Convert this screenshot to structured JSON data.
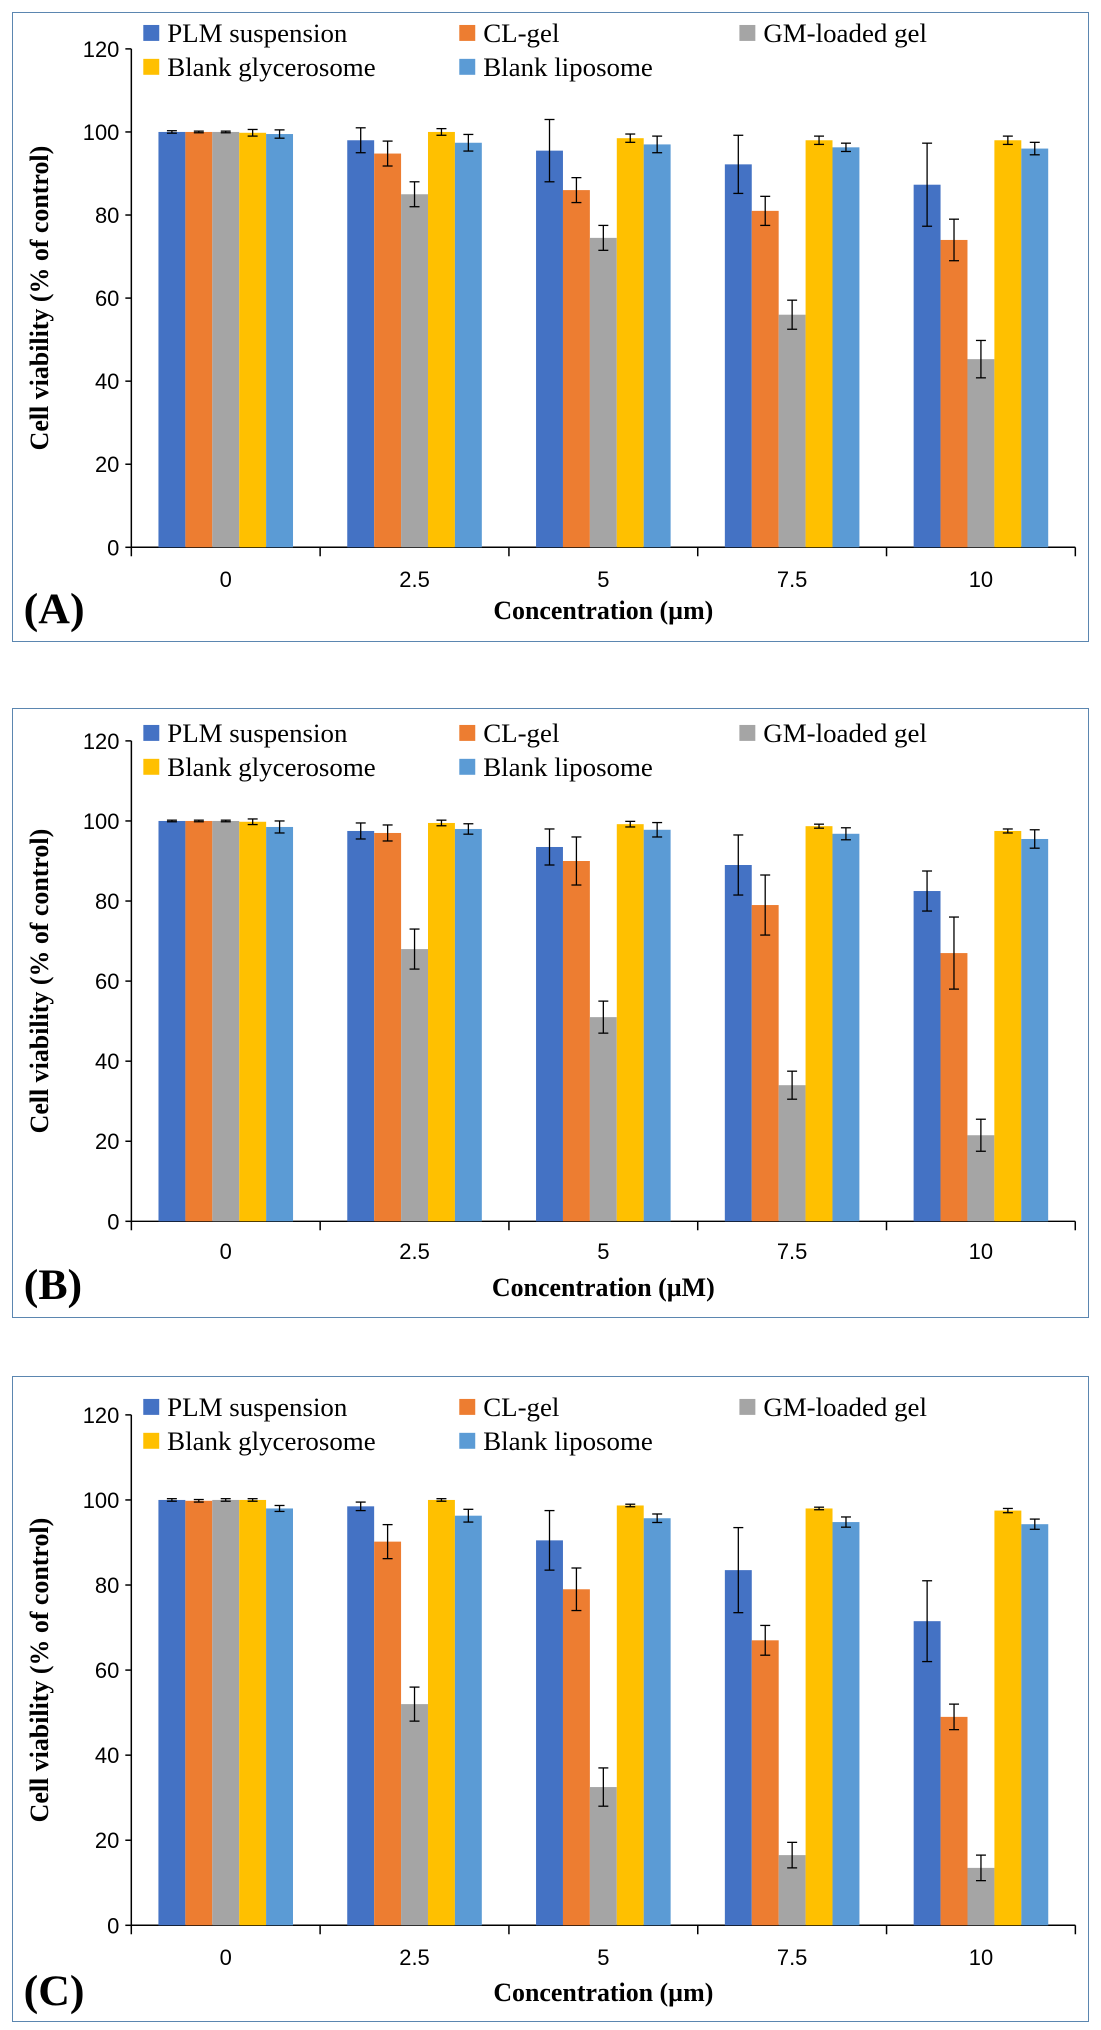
{
  "series_names": [
    "PLM suspension",
    "CL-gel",
    "GM-loaded gel",
    "Blank glycerosome",
    "Blank liposome"
  ],
  "colors": {
    "PLM suspension": "#4472c4",
    "CL-gel": "#ed7d31",
    "GM-loaded gel": "#a5a5a5",
    "Blank glycerosome": "#ffc000",
    "Blank liposome": "#5b9bd5"
  },
  "chart_data": [
    {
      "type": "bar",
      "panel_label": "(A)",
      "categories": [
        "0",
        "2.5",
        "5",
        "7.5",
        "10"
      ],
      "xlabel": "Concentration (µm)",
      "ylabel": "Cell viability (% of control)",
      "ylim": [
        0,
        120
      ],
      "yticks": [
        0,
        20,
        40,
        60,
        80,
        100,
        120
      ],
      "legend": "top",
      "series": [
        {
          "name": "PLM suspension",
          "values": [
            100,
            98,
            95.5,
            92.2,
            87.3
          ],
          "errors": [
            0.3,
            3,
            7.5,
            7,
            10
          ]
        },
        {
          "name": "CL-gel",
          "values": [
            100,
            94.8,
            86,
            81,
            74
          ],
          "errors": [
            0.2,
            3,
            3,
            3.5,
            5
          ]
        },
        {
          "name": "GM-loaded gel",
          "values": [
            100,
            85,
            74.5,
            56,
            45.3
          ],
          "errors": [
            0.2,
            3,
            3,
            3.5,
            4.5
          ]
        },
        {
          "name": "Blank glycerosome",
          "values": [
            99.8,
            100,
            98.5,
            98,
            98
          ],
          "errors": [
            0.8,
            0.8,
            1,
            1,
            1
          ]
        },
        {
          "name": "Blank liposome",
          "values": [
            99.5,
            97.4,
            97,
            96.3,
            96
          ],
          "errors": [
            1,
            2,
            2,
            1,
            1.5
          ]
        }
      ]
    },
    {
      "type": "bar",
      "panel_label": "(B)",
      "categories": [
        "0",
        "2.5",
        "5",
        "7.5",
        "10"
      ],
      "xlabel": "Concentration (µM)",
      "ylabel": "Cell viability (% of control)",
      "ylim": [
        0,
        120
      ],
      "yticks": [
        0,
        20,
        40,
        60,
        80,
        100,
        120
      ],
      "legend": "top",
      "series": [
        {
          "name": "PLM suspension",
          "values": [
            100,
            97.5,
            93.5,
            89,
            82.5
          ],
          "errors": [
            0.2,
            2,
            4.5,
            7.5,
            5
          ]
        },
        {
          "name": "CL-gel",
          "values": [
            100,
            97,
            90,
            79,
            67
          ],
          "errors": [
            0.2,
            2,
            6,
            7.5,
            9
          ]
        },
        {
          "name": "GM-loaded gel",
          "values": [
            100,
            68,
            51,
            34,
            21.5
          ],
          "errors": [
            0.2,
            5,
            4,
            3.5,
            4
          ]
        },
        {
          "name": "Blank glycerosome",
          "values": [
            99.8,
            99.5,
            99.2,
            98.7,
            97.5
          ],
          "errors": [
            0.7,
            0.7,
            0.7,
            0.5,
            0.5
          ]
        },
        {
          "name": "Blank liposome",
          "values": [
            98.5,
            98,
            97.8,
            96.8,
            95.5
          ],
          "errors": [
            1.5,
            1.3,
            1.8,
            1.5,
            2.3
          ]
        }
      ]
    },
    {
      "type": "bar",
      "panel_label": "(C)",
      "categories": [
        "0",
        "2.5",
        "5",
        "7.5",
        "10"
      ],
      "xlabel": "Concentration (µm)",
      "ylabel": "Cell viability (% of control)",
      "ylim": [
        0,
        120
      ],
      "yticks": [
        0,
        20,
        40,
        60,
        80,
        100,
        120
      ],
      "legend": "top",
      "series": [
        {
          "name": "PLM suspension",
          "values": [
            100,
            98.5,
            90.5,
            83.5,
            71.5
          ],
          "errors": [
            0.3,
            1,
            7,
            10,
            9.5
          ]
        },
        {
          "name": "CL-gel",
          "values": [
            99.8,
            90.2,
            79,
            67,
            49
          ],
          "errors": [
            0.3,
            4,
            5,
            3.5,
            3
          ]
        },
        {
          "name": "GM-loaded gel",
          "values": [
            100,
            52,
            32.5,
            16.5,
            13.5
          ],
          "errors": [
            0.3,
            4,
            4.5,
            3,
            3
          ]
        },
        {
          "name": "Blank glycerosome",
          "values": [
            100,
            100,
            98.7,
            98,
            97.5
          ],
          "errors": [
            0.3,
            0.3,
            0.3,
            0.3,
            0.5
          ]
        },
        {
          "name": "Blank liposome",
          "values": [
            98,
            96.3,
            95.7,
            94.8,
            94.3
          ],
          "errors": [
            0.7,
            1.5,
            1,
            1.2,
            1.2
          ]
        }
      ]
    }
  ]
}
